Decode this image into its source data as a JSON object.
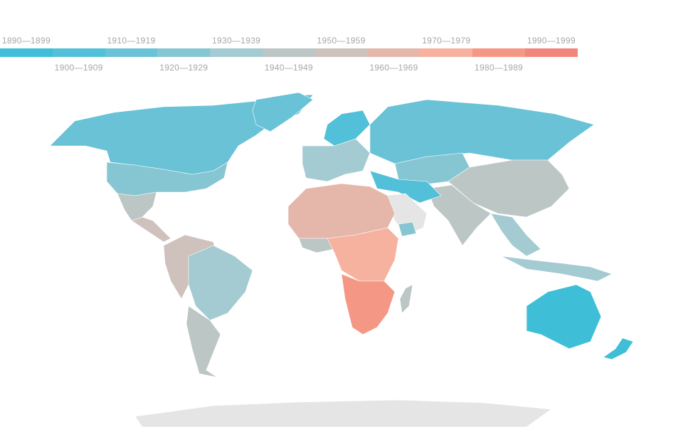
{
  "legend": {
    "bins": [
      {
        "label": "1890—1899",
        "color": "#3ebfd7"
      },
      {
        "label": "1900—1909",
        "color": "#52c0d8"
      },
      {
        "label": "1910—1919",
        "color": "#69c2d6"
      },
      {
        "label": "1920—1929",
        "color": "#86c6d2"
      },
      {
        "label": "1930—1939",
        "color": "#a3cbd1"
      },
      {
        "label": "1940—1949",
        "color": "#bbc6c5"
      },
      {
        "label": "1950—1959",
        "color": "#cfc1bc"
      },
      {
        "label": "1960—1969",
        "color": "#e4b7aa"
      },
      {
        "label": "1970—1979",
        "color": "#f6b19f"
      },
      {
        "label": "1980—1989",
        "color": "#f59785"
      },
      {
        "label": "1990—1999",
        "color": "#f1867a"
      }
    ]
  },
  "map": {
    "no_data_color": "#e5e5e5",
    "regions": [
      {
        "name": "Canada & Greenland",
        "bin": 2
      },
      {
        "name": "United States",
        "bin": 3
      },
      {
        "name": "Mexico",
        "bin": 5
      },
      {
        "name": "Central America",
        "bin": 6
      },
      {
        "name": "Brazil",
        "bin": 4
      },
      {
        "name": "Andean South America",
        "bin": 6
      },
      {
        "name": "Southern Cone",
        "bin": 5
      },
      {
        "name": "Northern Europe",
        "bin": 1
      },
      {
        "name": "Russia",
        "bin": 2
      },
      {
        "name": "Central Asia",
        "bin": 3
      },
      {
        "name": "China",
        "bin": 5
      },
      {
        "name": "India",
        "bin": 5
      },
      {
        "name": "Southeast Asia",
        "bin": 4
      },
      {
        "name": "North Africa",
        "bin": 7
      },
      {
        "name": "Arabian Peninsula",
        "bin": -1
      },
      {
        "name": "Central Africa",
        "bin": 8
      },
      {
        "name": "Southern Africa",
        "bin": 9
      },
      {
        "name": "Australia",
        "bin": 0
      },
      {
        "name": "New Zealand",
        "bin": 0
      },
      {
        "name": "Antarctica",
        "bin": -1
      }
    ]
  }
}
